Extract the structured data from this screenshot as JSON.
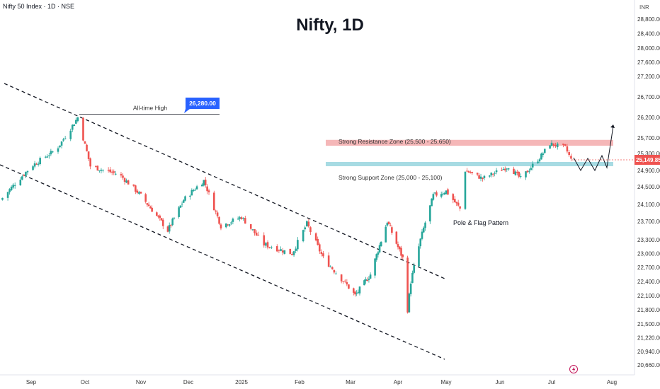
{
  "header": {
    "symbol_line": "Nifty 50 Index · 1D · NSE",
    "title": "Nifty, 1D",
    "currency": "INR"
  },
  "colors": {
    "up": "#26a69a",
    "down": "#ef5350",
    "resistance_zone": "#f5b7b8",
    "support_zone": "#a7dbe3",
    "price_tag": "#ef5350",
    "ath_callout": "#2962ff"
  },
  "chart_data": {
    "type": "candlestick",
    "title": "Nifty, 1D",
    "y_axis": {
      "ticks": [
        "28,800.00",
        "28,400.00",
        "28,000.00",
        "27,600.00",
        "27,200.00",
        "26,700.00",
        "26,200.00",
        "25,700.00",
        "25,300.00",
        "24,900.00",
        "24,500.00",
        "24,100.00",
        "23,700.00",
        "23,300.00",
        "23,000.00",
        "22,700.00",
        "22,400.00",
        "22,100.00",
        "21,800.00",
        "21,500.00",
        "21,220.00",
        "20,940.00",
        "20,660.00"
      ]
    },
    "x_axis": {
      "ticks": [
        "Sep",
        "Oct",
        "Nov",
        "Dec",
        "2025",
        "Feb",
        "Mar",
        "Apr",
        "May",
        "Jun",
        "Jul",
        "Aug"
      ]
    },
    "price_anchors": [
      {
        "date": "2024-08-15",
        "close": 24200
      },
      {
        "date": "2024-09-01",
        "close": 25000
      },
      {
        "date": "2024-09-15",
        "close": 25400
      },
      {
        "date": "2024-09-27",
        "close": 26200
      },
      {
        "date": "2024-10-04",
        "close": 25000
      },
      {
        "date": "2024-10-20",
        "close": 24800
      },
      {
        "date": "2024-11-01",
        "close": 24300
      },
      {
        "date": "2024-11-18",
        "close": 23500
      },
      {
        "date": "2024-11-28",
        "close": 24200
      },
      {
        "date": "2024-12-10",
        "close": 24650
      },
      {
        "date": "2024-12-20",
        "close": 23600
      },
      {
        "date": "2025-01-01",
        "close": 23800
      },
      {
        "date": "2025-01-13",
        "close": 23200
      },
      {
        "date": "2025-01-28",
        "close": 23000
      },
      {
        "date": "2025-02-05",
        "close": 23650
      },
      {
        "date": "2025-02-14",
        "close": 22900
      },
      {
        "date": "2025-03-04",
        "close": 22100
      },
      {
        "date": "2025-03-14",
        "close": 22550
      },
      {
        "date": "2025-03-25",
        "close": 23700
      },
      {
        "date": "2025-04-04",
        "close": 22900
      },
      {
        "date": "2025-04-07",
        "close": 21800
      },
      {
        "date": "2025-04-09",
        "close": 22400
      },
      {
        "date": "2025-04-15",
        "close": 23300
      },
      {
        "date": "2025-04-23",
        "close": 24300
      },
      {
        "date": "2025-05-01",
        "close": 24400
      },
      {
        "date": "2025-05-09",
        "close": 24000
      },
      {
        "date": "2025-05-12",
        "close": 24900
      },
      {
        "date": "2025-05-22",
        "close": 24700
      },
      {
        "date": "2025-06-06",
        "close": 25000
      },
      {
        "date": "2025-06-13",
        "close": 24700
      },
      {
        "date": "2025-06-25",
        "close": 25250
      },
      {
        "date": "2025-06-30",
        "close": 25550
      },
      {
        "date": "2025-07-08",
        "close": 25450
      },
      {
        "date": "2025-07-11",
        "close": 25149.85
      }
    ],
    "last_price": "25,149.85",
    "annotations": {
      "ath_label": "All-time High",
      "ath_value": "26,280.00",
      "resistance_label": "Strong Resistance Zone (25,500 - 25,650)",
      "resistance_range": [
        25500,
        25650
      ],
      "support_label": "Strong Support Zone (25,000 - 25,100)",
      "support_range": [
        25000,
        25100
      ],
      "pattern_label": "Pole & Flag Pattern"
    }
  }
}
